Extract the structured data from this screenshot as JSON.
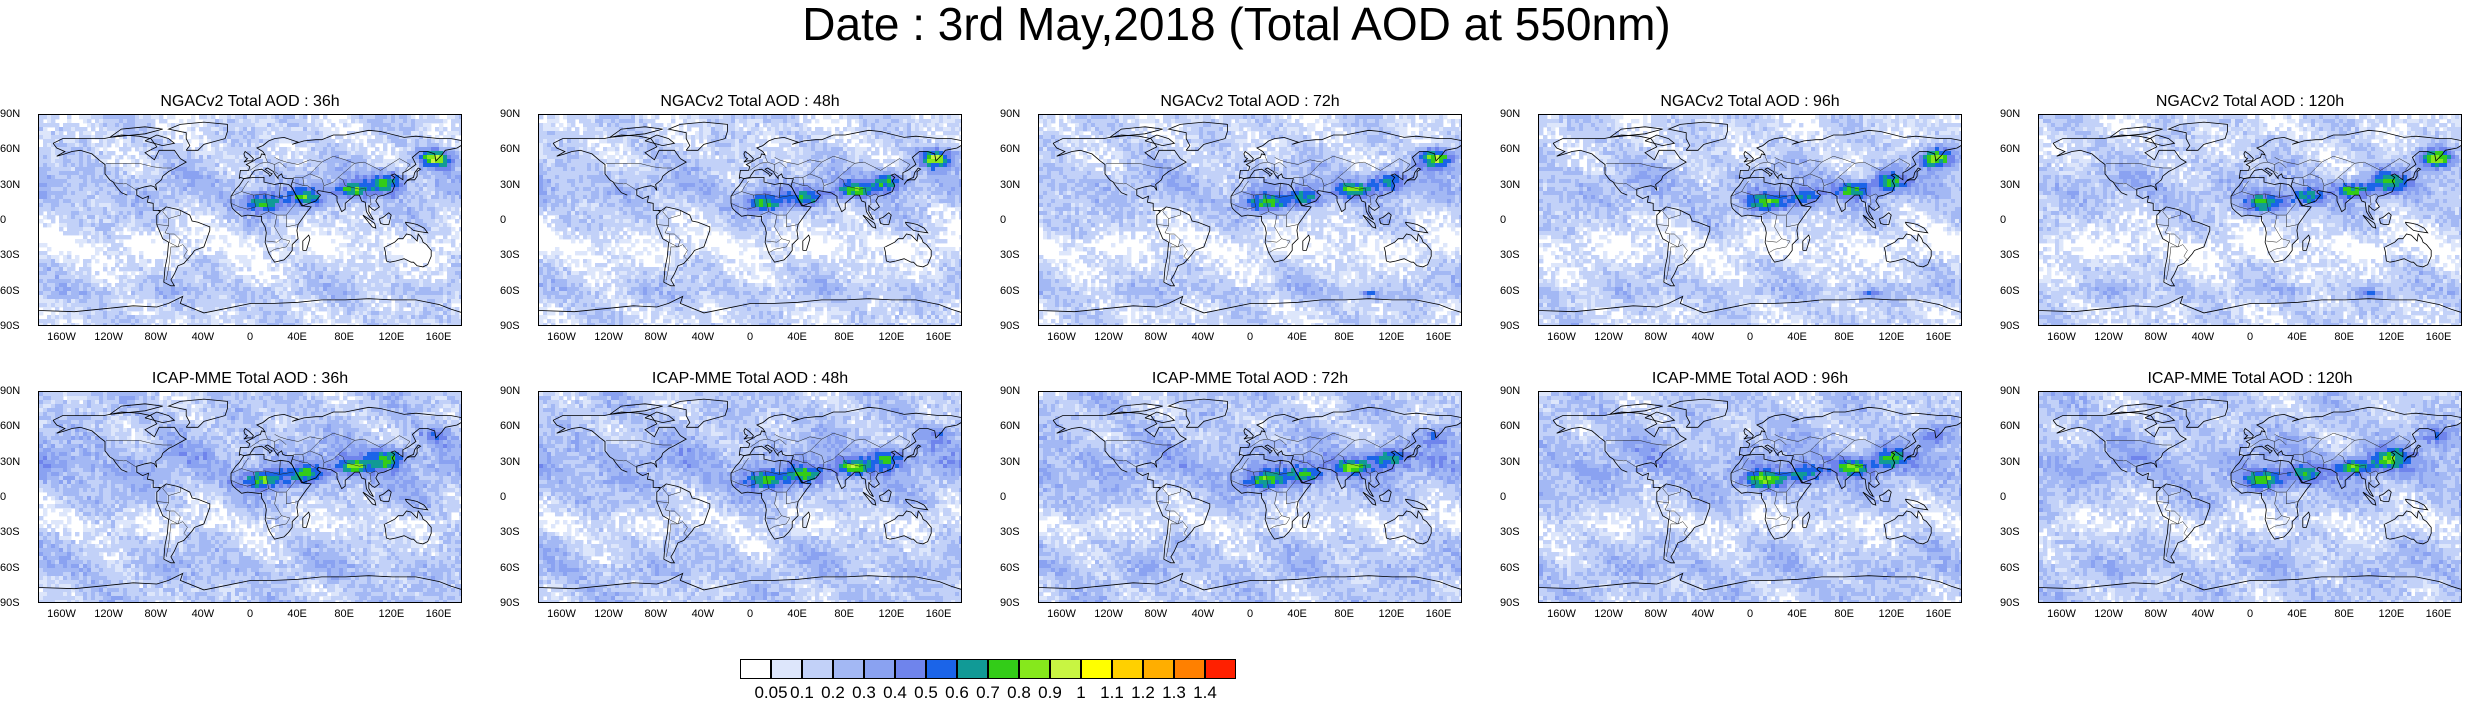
{
  "title": "Date : 3rd May,2018 (Total AOD at 550nm)",
  "lat_labels": [
    "90N",
    "60N",
    "30N",
    "0",
    "30S",
    "60S",
    "90S"
  ],
  "lon_labels": [
    "160W",
    "120W",
    "80W",
    "40W",
    "0",
    "40E",
    "80E",
    "120E",
    "160E"
  ],
  "panels": [
    {
      "title": "NGACv2 Total AOD : 36h",
      "model": "ngac",
      "lead": 36
    },
    {
      "title": "NGACv2 Total AOD : 48h",
      "model": "ngac",
      "lead": 48
    },
    {
      "title": "NGACv2 Total AOD : 72h",
      "model": "ngac",
      "lead": 72
    },
    {
      "title": "NGACv2 Total AOD : 96h",
      "model": "ngac",
      "lead": 96
    },
    {
      "title": "NGACv2 Total AOD : 120h",
      "model": "ngac",
      "lead": 120
    },
    {
      "title": "ICAP-MME Total AOD : 36h",
      "model": "icap",
      "lead": 36
    },
    {
      "title": "ICAP-MME Total AOD : 48h",
      "model": "icap",
      "lead": 48
    },
    {
      "title": "ICAP-MME Total AOD : 72h",
      "model": "icap",
      "lead": 72
    },
    {
      "title": "ICAP-MME Total AOD : 96h",
      "model": "icap",
      "lead": 96
    },
    {
      "title": "ICAP-MME Total AOD : 120h",
      "model": "icap",
      "lead": 120
    }
  ],
  "colorbar": {
    "labels": [
      "0.05",
      "0.1",
      "0.2",
      "0.3",
      "0.4",
      "0.5",
      "0.6",
      "0.7",
      "0.8",
      "0.9",
      "1",
      "1.1",
      "1.2",
      "1.3",
      "1.4"
    ],
    "colors": [
      "#ffffff",
      "#dde6fb",
      "#c2d1f8",
      "#a3b8f4",
      "#8aa2f1",
      "#6f84ec",
      "#1b64e8",
      "#119a96",
      "#33cc18",
      "#86e81c",
      "#c8f542",
      "#ffff00",
      "#ffd000",
      "#ffae00",
      "#ff8000",
      "#ff2000"
    ]
  }
}
